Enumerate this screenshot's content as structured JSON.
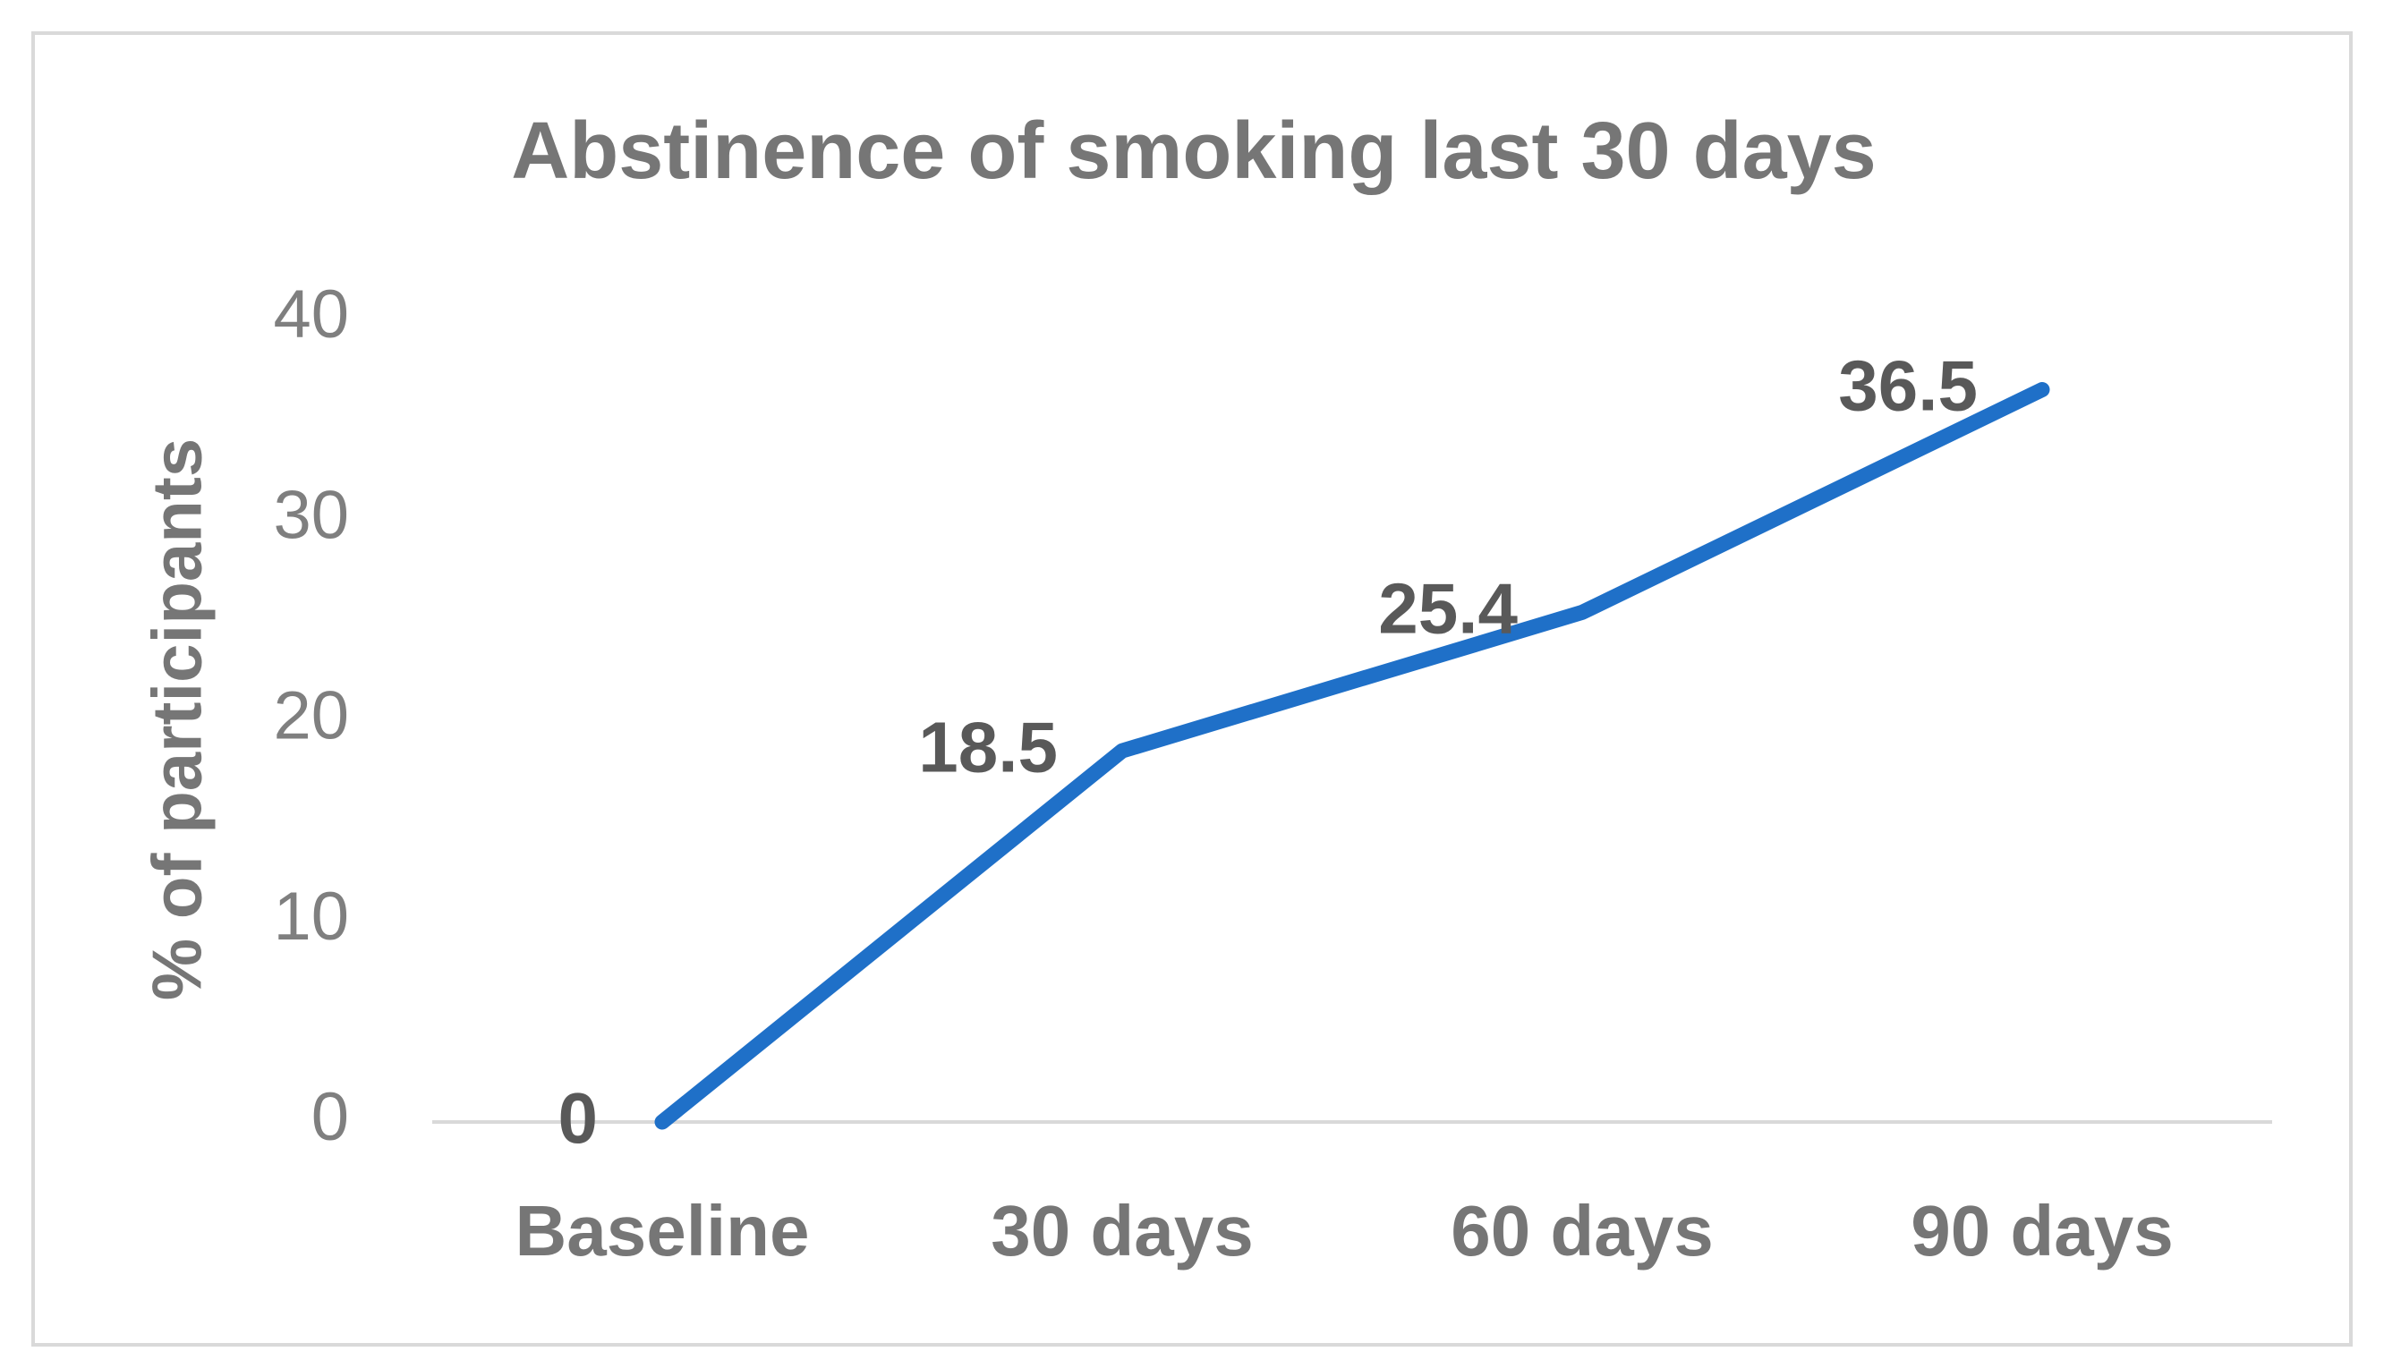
{
  "chart_data": {
    "type": "line",
    "title": "Abstinence of smoking last 30 days",
    "y_label": "% of participants",
    "categories": [
      "Baseline",
      "30 days",
      "60 days",
      "90 days"
    ],
    "values": [
      0,
      18.5,
      25.4,
      36.5
    ],
    "color": "#1f70c8",
    "ylim": [
      0,
      40
    ],
    "yticks": [
      0,
      10,
      20,
      30,
      40
    ],
    "grid": false
  }
}
